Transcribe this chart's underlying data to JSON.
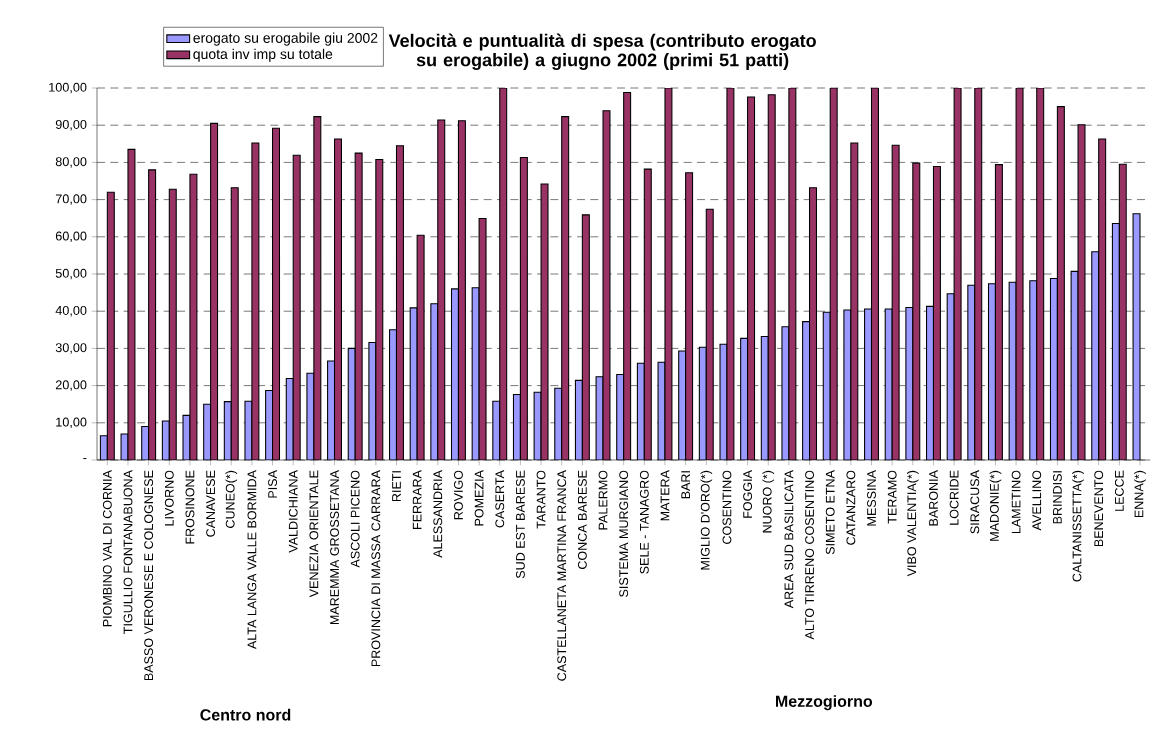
{
  "chart_data": {
    "type": "bar",
    "title": "Velocità e puntualità di spesa (contributo erogato su erogabile) a giugno 2002 (primi 51 patti)",
    "categories": [
      "PIOMBINO VAL DI CORNIA",
      "TIGULLIO FONTANABUONA",
      "BASSO VERONESE E COLOGNESE",
      "LIVORNO",
      "FROSINONE",
      "CANAVESE",
      "CUNEO(*)",
      "ALTA LANGA VALLE BORMIDA",
      "PISA",
      "VALDICHIANA",
      "VENEZIA ORIENTALE",
      "MAREMMA GROSSETANA",
      "ASCOLI PICENO",
      "PROVINCIA DI MASSA CARRARA",
      "RIETI",
      "FERRARA",
      "ALESSANDRIA",
      "ROVIGO",
      "POMEZIA",
      "CASERTA",
      "SUD EST BARESE",
      "TARANTO",
      "CASTELLANETA MARTINA FRANCA",
      "CONCA BARESE",
      "PALERMO",
      "SISTEMA MURGIANO",
      "SELE - TANAGRO",
      "MATERA",
      "BARI",
      "MIGLIO D'ORO(*)",
      "COSENTINO",
      "FOGGIA",
      "NUORO (*)",
      "AREA SUD BASILICATA",
      "ALTO TIRRENO COSENTINO",
      "SIMETO ETNA",
      "CATANZARO",
      "MESSINA",
      "TERAMO",
      "VIBO VALENTIA(*)",
      "BARONIA",
      "LOCRIDE",
      "SIRACUSA",
      "MADONIE(*)",
      "LAMETINO",
      "AVELLINO",
      "BRINDISI",
      "CALTANISSETTA(*)",
      "BENEVENTO",
      "LECCE",
      "ENNA(*)"
    ],
    "series": [
      {
        "name": "erogato su erogabile giu 2002",
        "color": "#9999ff",
        "values": [
          6.5,
          7,
          9,
          10.5,
          12,
          15,
          15.7,
          15.8,
          18.7,
          21.9,
          23.3,
          26.6,
          30,
          31.6,
          35,
          40.9,
          42,
          46,
          46.3,
          15.8,
          17.6,
          18.2,
          19.3,
          21.4,
          22.4,
          23,
          26,
          26.3,
          29.3,
          30.3,
          31.1,
          32.7,
          33.2,
          35.8,
          37.2,
          39.7,
          40.3,
          40.6,
          40.6,
          41,
          41.3,
          44.7,
          47,
          47.4,
          47.8,
          48.2,
          48.8,
          50.7,
          56,
          63.6,
          66.2
        ]
      },
      {
        "name": "quota inv imp su totale",
        "color": "#993366",
        "values": [
          72,
          83.5,
          78,
          72.8,
          76.8,
          90.5,
          73.2,
          85.2,
          89.2,
          81.9,
          92.3,
          86.3,
          82.5,
          80.8,
          84.5,
          60.4,
          91.4,
          91.2,
          64.9,
          100,
          81.3,
          74.2,
          92.3,
          65.9,
          93.9,
          98.8,
          78.2,
          100,
          77.2,
          67.4,
          100,
          97.6,
          98.2,
          100,
          73.2,
          100,
          85.2,
          100,
          84.6,
          79.8,
          78.9,
          100,
          100,
          79.4,
          100,
          100,
          95,
          90.1,
          86.3,
          79.5,
          null
        ]
      }
    ],
    "ylim": [
      0,
      100
    ],
    "yticks": [
      {
        "value": 0,
        "label": "-"
      },
      {
        "value": 10,
        "label": "10,00"
      },
      {
        "value": 20,
        "label": "20,00"
      },
      {
        "value": 30,
        "label": "30,00"
      },
      {
        "value": 40,
        "label": "40,00"
      },
      {
        "value": 50,
        "label": "50,00"
      },
      {
        "value": 60,
        "label": "60,00"
      },
      {
        "value": 70,
        "label": "70,00"
      },
      {
        "value": 80,
        "label": "80,00"
      },
      {
        "value": 90,
        "label": "90,00"
      },
      {
        "value": 100,
        "label": "100,00"
      }
    ],
    "grid": "y",
    "legend": "top left",
    "annotations": [
      "Centro nord",
      "Mezzogiorno"
    ]
  }
}
